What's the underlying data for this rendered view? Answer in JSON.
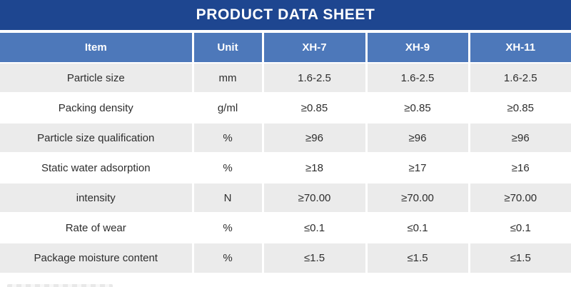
{
  "title_bar": {
    "title": "PRODUCT DATA SHEET"
  },
  "colors": {
    "title_bar_bg": "#1e4690",
    "header_row_bg": "#4d78ba",
    "row_alt_bg": "#ebebeb",
    "header_text": "#ffffff",
    "body_text": "#2e2e2e"
  },
  "table": {
    "headers": [
      "Item",
      "Unit",
      "XH-7",
      "XH-9",
      "XH-11"
    ],
    "rows": [
      [
        "Particle size",
        "mm",
        "1.6-2.5",
        "1.6-2.5",
        "1.6-2.5"
      ],
      [
        "Packing density",
        "g/ml",
        "≥0.85",
        "≥0.85",
        "≥0.85"
      ],
      [
        "Particle size qualification",
        "%",
        "≥96",
        "≥96",
        "≥96"
      ],
      [
        "Static water adsorption",
        "%",
        "≥18",
        "≥17",
        "≥16"
      ],
      [
        "intensity",
        "N",
        "≥70.00",
        "≥70.00",
        "≥70.00"
      ],
      [
        "Rate of wear",
        "%",
        "≤0.1",
        "≤0.1",
        "≤0.1"
      ],
      [
        "Package moisture content",
        "%",
        "≤1.5",
        "≤1.5",
        "≤1.5"
      ]
    ]
  }
}
